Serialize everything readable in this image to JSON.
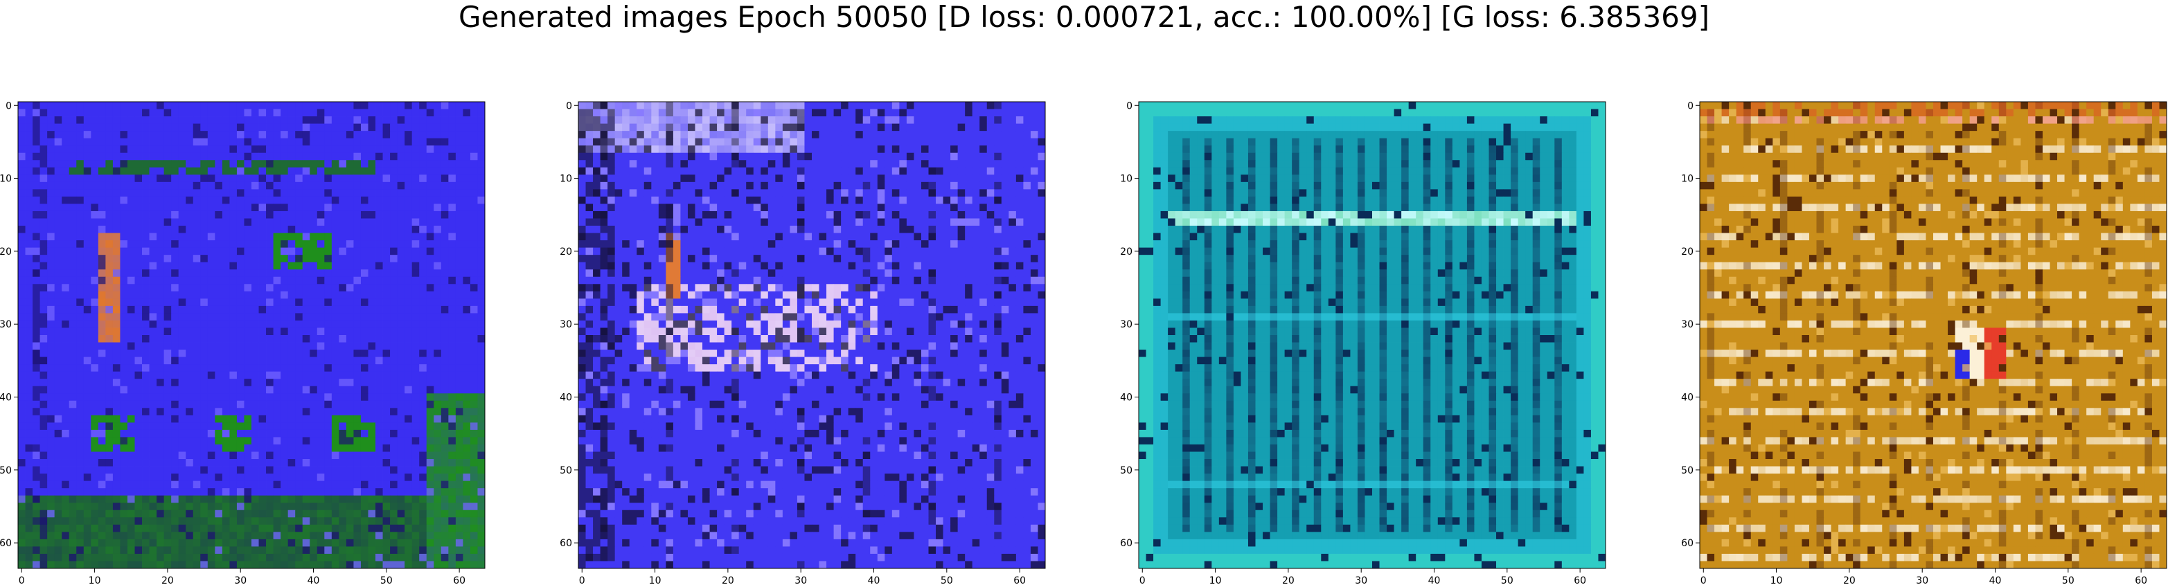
{
  "figure": {
    "title": "Generated images Epoch 50050 [D loss: 0.000721, acc.: 100.00%] [G loss: 6.385369]"
  },
  "axes_ticks": {
    "x": [
      "0",
      "10",
      "20",
      "30",
      "40",
      "50",
      "60"
    ],
    "y": [
      "0",
      "10",
      "20",
      "30",
      "40",
      "50",
      "60"
    ]
  },
  "panels": [
    {
      "id": "panel-1",
      "palette": {
        "base": "#3b2ff2",
        "dark": "#1b1270",
        "light": "#6e60ff",
        "accent": "#1f8f1c",
        "accent2": "#e2782a",
        "hi": "#d8d0ff"
      }
    },
    {
      "id": "panel-2",
      "palette": {
        "base": "#4238f4",
        "dark": "#14103a",
        "light": "#8a7cff",
        "accent": "#d9b7f0",
        "accent2": "#e07a36",
        "hi": "#f2eaff"
      }
    },
    {
      "id": "panel-3",
      "palette": {
        "base": "#159fb2",
        "dark": "#0a2c57",
        "light": "#31d0e6",
        "accent": "#2cc47a",
        "accent2": "#0e6d8c",
        "hi": "#c8fbff"
      }
    },
    {
      "id": "panel-4",
      "palette": {
        "base": "#c98e1a",
        "dark": "#5a2c08",
        "light": "#f0c060",
        "accent": "#f8e8c8",
        "accent2": "#e73d2a",
        "hi": "#fff7e6"
      }
    }
  ]
}
